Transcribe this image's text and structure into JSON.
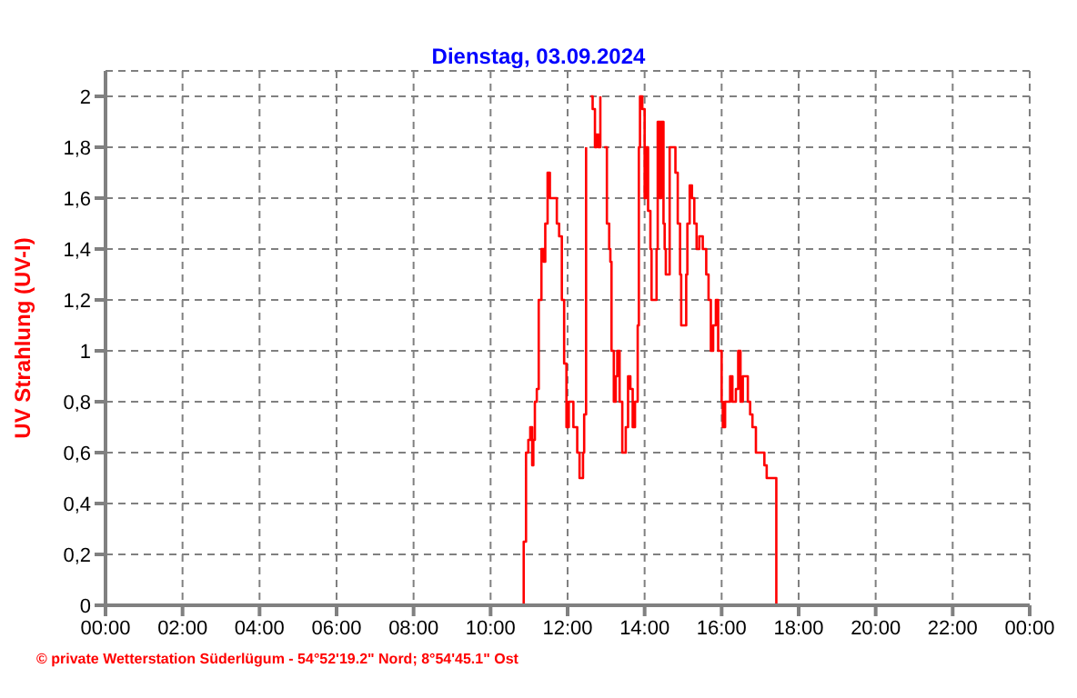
{
  "chart_data": {
    "type": "step",
    "title": "Dienstag, 03.09.2024",
    "ylabel": "UV Strahlung  (UV-I)",
    "annotations": [
      "© private Wetterstation Süderlügum - 54°52'19.2\" Nord; 8°54'45.1\" Ost"
    ],
    "xlim": [
      0,
      24
    ],
    "xticks": [
      {
        "value": 0,
        "label": "00:00"
      },
      {
        "value": 2,
        "label": "02:00"
      },
      {
        "value": 4,
        "label": "04:00"
      },
      {
        "value": 6,
        "label": "06:00"
      },
      {
        "value": 8,
        "label": "08:00"
      },
      {
        "value": 10,
        "label": "10:00"
      },
      {
        "value": 12,
        "label": "12:00"
      },
      {
        "value": 14,
        "label": "14:00"
      },
      {
        "value": 16,
        "label": "16:00"
      },
      {
        "value": 18,
        "label": "18:00"
      },
      {
        "value": 20,
        "label": "20:00"
      },
      {
        "value": 22,
        "label": "22:00"
      },
      {
        "value": 24,
        "label": "00:00"
      }
    ],
    "ylim": [
      0,
      2.1
    ],
    "yticks": [
      0,
      {
        "value": 0.2,
        "label": "0,2"
      },
      {
        "value": 0.4,
        "label": "0,4"
      },
      {
        "value": 0.6,
        "label": "0,6"
      },
      {
        "value": 0.8,
        "label": "0,8"
      },
      1,
      {
        "value": 1.2,
        "label": "1,2"
      },
      {
        "value": 1.4,
        "label": "1,4"
      },
      {
        "value": 1.6,
        "label": "1,6"
      },
      {
        "value": 1.8,
        "label": "1,8"
      },
      2
    ],
    "grid": true,
    "marker": "none",
    "line_style": "solid",
    "series": [
      {
        "color": "#ff0000",
        "x": [
          0,
          10.86,
          10.92,
          10.98,
          11.03,
          11.08,
          11.11,
          11.15,
          11.2,
          11.25,
          11.32,
          11.38,
          11.42,
          11.48,
          11.54,
          11.72,
          11.78,
          11.85,
          11.91,
          11.97,
          12.03,
          12.15,
          12.25,
          12.31,
          12.4,
          12.43,
          12.48,
          12.52,
          12.6,
          12.65,
          12.71,
          12.75,
          12.8,
          12.85,
          12.89,
          12.95,
          13.02,
          13.08,
          13.11,
          13.14,
          13.2,
          13.25,
          13.29,
          13.35,
          13.42,
          13.51,
          13.57,
          13.63,
          13.69,
          13.75,
          13.82,
          13.85,
          13.88,
          13.94,
          14.0,
          14.03,
          14.09,
          14.15,
          14.18,
          14.31,
          14.34,
          14.4,
          14.43,
          14.49,
          14.52,
          14.55,
          14.65,
          14.71,
          14.8,
          14.86,
          14.92,
          14.95,
          15.08,
          15.11,
          15.17,
          15.23,
          15.29,
          15.35,
          15.42,
          15.51,
          15.6,
          15.66,
          15.72,
          15.78,
          15.85,
          15.91,
          16.0,
          16.03,
          16.09,
          16.22,
          16.28,
          16.37,
          16.43,
          16.49,
          16.55,
          16.68,
          16.74,
          16.8,
          16.89,
          17.11,
          17.17,
          17.42,
          24
        ],
        "values": [
          0,
          0.25,
          0.6,
          0.65,
          0.7,
          0.55,
          0.65,
          0.8,
          0.85,
          1.2,
          1.4,
          1.35,
          1.5,
          1.7,
          1.6,
          1.5,
          1.45,
          1.2,
          0.95,
          0.7,
          0.8,
          0.7,
          0.6,
          0.5,
          0.6,
          0.75,
          1.8,
          null,
          2.0,
          1.95,
          1.8,
          1.85,
          1.8,
          2.0,
          null,
          1.8,
          1.5,
          1.4,
          1.35,
          1.0,
          0.8,
          0.9,
          1.0,
          0.8,
          0.6,
          0.7,
          0.9,
          0.85,
          0.7,
          0.8,
          1.1,
          1.8,
          2.0,
          1.95,
          1.6,
          1.8,
          1.55,
          1.4,
          1.2,
          1.4,
          1.9,
          1.6,
          1.9,
          1.5,
          1.4,
          1.3,
          1.8,
          1.8,
          1.7,
          1.5,
          1.3,
          1.1,
          1.3,
          1.5,
          1.65,
          1.6,
          1.5,
          1.4,
          1.45,
          1.4,
          1.3,
          1.2,
          1.0,
          1.1,
          1.2,
          1.0,
          0.8,
          0.7,
          0.8,
          0.9,
          0.8,
          0.85,
          1.0,
          0.8,
          0.9,
          0.8,
          0.75,
          0.7,
          0.6,
          0.55,
          0.5,
          0,
          0
        ]
      }
    ]
  }
}
